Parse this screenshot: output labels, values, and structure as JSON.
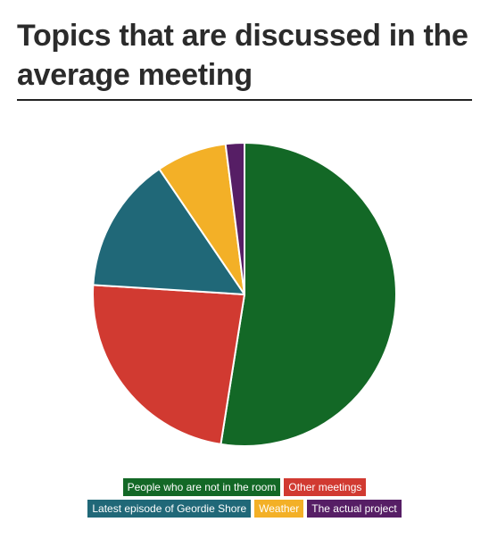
{
  "chart_data": {
    "type": "pie",
    "title": "Topics that are discussed in the average meeting",
    "legend_position": "bottom",
    "slices": [
      {
        "label": "People who are not in the room",
        "value": 52.5,
        "color": "#136826"
      },
      {
        "label": "Other meetings",
        "value": 23.5,
        "color": "#d13a31"
      },
      {
        "label": "Latest episode of Geordie Shore",
        "value": 14.5,
        "color": "#206878"
      },
      {
        "label": "Weather",
        "value": 7.5,
        "color": "#f3b027"
      },
      {
        "label": "The actual project",
        "value": 2.0,
        "color": "#561e65"
      }
    ]
  }
}
